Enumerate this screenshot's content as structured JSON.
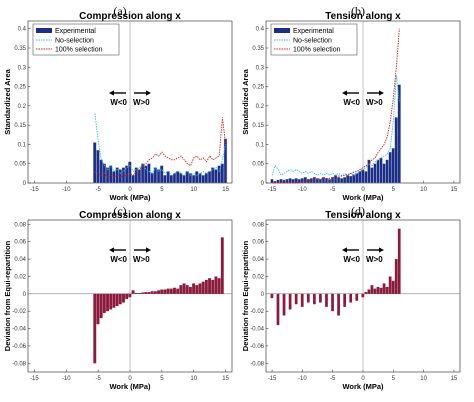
{
  "colors": {
    "experimental_bar": "#1a2f8c",
    "no_selection": "#2ec0e8",
    "full_selection": "#c8201c",
    "deviation_bar": "#8c1a3c"
  },
  "arrows": {
    "left_label": "W<0",
    "right_label": "W>0"
  },
  "legend": {
    "experimental": "Experimental",
    "no_selection": "No-selection",
    "full_selection": "100% selection"
  },
  "chart_data": [
    {
      "panel": "(a)",
      "type": "bar",
      "title": "Compression along x",
      "xlabel": "Work (MPa)",
      "ylabel": "Standardized Area",
      "xlim": [
        -16,
        16
      ],
      "ylim": [
        0,
        0.42
      ],
      "xticks": [
        -15,
        -10,
        -5,
        0,
        5,
        10,
        15
      ],
      "yticks": [
        0,
        0.05,
        0.1,
        0.15,
        0.2,
        0.25,
        0.3,
        0.35,
        0.4
      ],
      "x": [
        -5.5,
        -5,
        -4.5,
        -4,
        -3.5,
        -3,
        -2.5,
        -2,
        -1.5,
        -1,
        -0.5,
        0,
        0.5,
        1,
        1.5,
        2,
        2.5,
        3,
        3.5,
        4,
        4.5,
        5,
        5.5,
        6,
        6.5,
        7,
        7.5,
        8,
        8.5,
        9,
        9.5,
        10,
        10.5,
        11,
        11.5,
        12,
        12.5,
        13,
        13.5,
        14,
        14.5,
        15
      ],
      "series": [
        {
          "name": "Experimental",
          "kind": "bar",
          "values": [
            0.105,
            0.085,
            0.06,
            0.05,
            0.04,
            0.045,
            0.03,
            0.04,
            0.035,
            0.04,
            0.045,
            0.055,
            0.02,
            0.04,
            0.035,
            0.05,
            0.045,
            0.05,
            0.025,
            0.04,
            0.035,
            0.045,
            0.02,
            0.03,
            0.02,
            0.025,
            0.03,
            0.025,
            0.02,
            0.03,
            0.025,
            0.02,
            0.03,
            0.025,
            0.02,
            0.025,
            0.03,
            0.04,
            0.035,
            0.045,
            0.05,
            0.115
          ]
        },
        {
          "name": "No-selection",
          "kind": "line",
          "values": [
            0.18,
            0.11,
            0.06,
            0.045,
            0.035,
            0.045,
            0.03,
            0.035,
            0.025,
            0.03,
            0.04,
            0.045,
            0.03,
            0.035,
            0.04,
            0.05,
            0.035,
            0.03,
            0.025,
            0.04,
            0.03,
            0.035,
            0.025,
            0.03,
            0.02,
            0.025,
            0.03,
            0.025,
            0.02,
            0.03,
            0.02,
            0.025,
            0.02,
            0.025,
            0.03,
            0.025,
            0.03,
            0.035,
            0.04,
            0.03,
            0.06,
            0.1
          ]
        },
        {
          "name": "100% selection",
          "kind": "line",
          "values": [
            0.03,
            0.025,
            0.02,
            0.025,
            0.015,
            0.02,
            0.015,
            0.02,
            0.015,
            0.02,
            0.02,
            0.025,
            0.02,
            0.03,
            0.035,
            0.045,
            0.05,
            0.06,
            0.065,
            0.075,
            0.07,
            0.08,
            0.07,
            0.065,
            0.06,
            0.06,
            0.065,
            0.07,
            0.06,
            0.05,
            0.045,
            0.065,
            0.07,
            0.06,
            0.065,
            0.055,
            0.07,
            0.06,
            0.065,
            0.07,
            0.17,
            0.1
          ]
        }
      ]
    },
    {
      "panel": "(b)",
      "type": "bar",
      "title": "Tension along x",
      "xlabel": "Work (MPa)",
      "ylabel": "Standardized Area",
      "xlim": [
        -16,
        16
      ],
      "ylim": [
        0,
        0.42
      ],
      "xticks": [
        -15,
        -10,
        -5,
        0,
        5,
        10,
        15
      ],
      "yticks": [
        0,
        0.05,
        0.1,
        0.15,
        0.2,
        0.25,
        0.3,
        0.35,
        0.4
      ],
      "x": [
        -15,
        -14.5,
        -14,
        -13.5,
        -13,
        -12.5,
        -12,
        -11.5,
        -11,
        -10.5,
        -10,
        -9.5,
        -9,
        -8.5,
        -8,
        -7.5,
        -7,
        -6.5,
        -6,
        -5.5,
        -5,
        -4.5,
        -4,
        -3.5,
        -3,
        -2.5,
        -2,
        -1.5,
        -1,
        -0.5,
        0,
        0.5,
        1,
        1.5,
        2,
        2.5,
        3,
        3.5,
        4,
        4.5,
        5,
        5.5,
        6
      ],
      "series": [
        {
          "name": "Experimental",
          "kind": "bar",
          "values": [
            0.01,
            0.005,
            0.008,
            0.01,
            0.008,
            0.01,
            0.012,
            0.01,
            0.012,
            0.01,
            0.012,
            0.015,
            0.01,
            0.012,
            0.015,
            0.012,
            0.01,
            0.015,
            0.012,
            0.01,
            0.015,
            0.02,
            0.015,
            0.012,
            0.015,
            0.02,
            0.018,
            0.022,
            0.025,
            0.03,
            0.035,
            0.03,
            0.06,
            0.04,
            0.05,
            0.06,
            0.065,
            0.05,
            0.06,
            0.08,
            0.09,
            0.17,
            0.255
          ]
        },
        {
          "name": "No-selection",
          "kind": "line",
          "values": [
            0.02,
            0.045,
            0.035,
            0.02,
            0.025,
            0.03,
            0.035,
            0.03,
            0.035,
            0.03,
            0.025,
            0.03,
            0.025,
            0.03,
            0.025,
            0.02,
            0.025,
            0.02,
            0.025,
            0.02,
            0.025,
            0.02,
            0.025,
            0.02,
            0.025,
            0.02,
            0.025,
            0.02,
            0.025,
            0.03,
            0.035,
            0.04,
            0.05,
            0.045,
            0.055,
            0.06,
            0.065,
            0.07,
            0.075,
            0.09,
            0.16,
            0.28,
            0.21
          ]
        },
        {
          "name": "100% selection",
          "kind": "line",
          "values": [
            0.0,
            0.0,
            0.0,
            0.0,
            0.0,
            0.0,
            0.0,
            0.0,
            0.0,
            0.0,
            0.005,
            0.005,
            0.005,
            0.008,
            0.008,
            0.01,
            0.01,
            0.012,
            0.012,
            0.012,
            0.015,
            0.015,
            0.018,
            0.018,
            0.02,
            0.022,
            0.025,
            0.028,
            0.03,
            0.035,
            0.04,
            0.045,
            0.05,
            0.06,
            0.065,
            0.08,
            0.09,
            0.1,
            0.12,
            0.16,
            0.22,
            0.3,
            0.4
          ]
        }
      ]
    },
    {
      "panel": "(c)",
      "type": "bar",
      "title": "Compression along x",
      "xlabel": "Work (MPa)",
      "ylabel": "Deviation from Equi-repartition",
      "xlim": [
        -16,
        16
      ],
      "ylim": [
        -0.09,
        0.085
      ],
      "xticks": [
        -15,
        -10,
        -5,
        0,
        5,
        10,
        15
      ],
      "yticks": [
        -0.08,
        -0.06,
        -0.04,
        -0.02,
        0,
        0.02,
        0.04,
        0.06,
        0.08
      ],
      "x": [
        -5.5,
        -5,
        -4.5,
        -4,
        -3.5,
        -3,
        -2.5,
        -2,
        -1.5,
        -1,
        -0.5,
        0,
        0.5,
        1,
        1.5,
        2,
        2.5,
        3,
        3.5,
        4,
        4.5,
        5,
        5.5,
        6,
        6.5,
        7,
        7.5,
        8,
        8.5,
        9,
        9.5,
        10,
        10.5,
        11,
        11.5,
        12,
        12.5,
        13,
        13.5,
        14,
        14.5,
        15
      ],
      "series": [
        {
          "name": "Deviation",
          "kind": "bar",
          "values": [
            -0.08,
            -0.035,
            -0.028,
            -0.022,
            -0.02,
            -0.018,
            -0.016,
            -0.014,
            -0.012,
            -0.01,
            -0.006,
            -0.004,
            0.004,
            0.001,
            0.001,
            0.0015,
            0.002,
            0.002,
            0.003,
            0.003,
            0.004,
            0.005,
            0.005,
            0.006,
            0.006,
            0.007,
            0.006,
            0.01,
            0.012,
            0.01,
            0.008,
            0.012,
            0.01,
            0.012,
            0.014,
            0.016,
            0.018,
            0.016,
            0.02,
            0.018,
            0.065,
            0.0
          ]
        }
      ]
    },
    {
      "panel": "(d)",
      "type": "bar",
      "title": "Tension along x",
      "xlabel": "Work (MPa)",
      "ylabel": "Deviation from Equi-repartition",
      "xlim": [
        -16,
        16
      ],
      "ylim": [
        -0.09,
        0.085
      ],
      "xticks": [
        -15,
        -10,
        -5,
        0,
        5,
        10,
        15
      ],
      "yticks": [
        -0.08,
        -0.06,
        -0.04,
        -0.02,
        0,
        0.02,
        0.04,
        0.06,
        0.08
      ],
      "x": [
        -15,
        -14,
        -13,
        -12,
        -11,
        -10,
        -9,
        -8,
        -7,
        -6,
        -5,
        -4,
        -3,
        -2,
        -1,
        0,
        0.5,
        1,
        1.5,
        2,
        2.5,
        3,
        3.5,
        4,
        4.5,
        5,
        5.5,
        6
      ],
      "series": [
        {
          "name": "Deviation",
          "kind": "bar",
          "values": [
            -0.005,
            -0.036,
            -0.025,
            -0.018,
            -0.012,
            -0.015,
            -0.01,
            -0.012,
            -0.01,
            -0.015,
            -0.02,
            -0.025,
            -0.015,
            -0.01,
            -0.008,
            -0.004,
            0.002,
            0.005,
            0.01,
            0.006,
            0.008,
            0.007,
            0.012,
            0.008,
            0.02,
            0.015,
            0.04,
            0.075
          ]
        }
      ]
    }
  ]
}
